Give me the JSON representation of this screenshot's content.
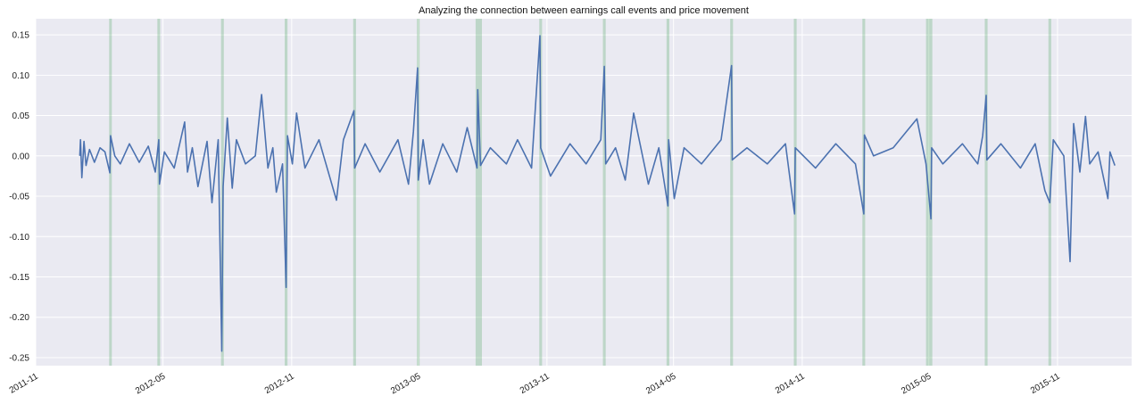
{
  "chart_data": {
    "type": "line",
    "title": "Analyzing the connection between earnings call events and price movement",
    "xlabel": "",
    "ylabel": "",
    "x_range": [
      "2011-11-01",
      "2016-02-15"
    ],
    "ylim": [
      -0.26,
      0.17
    ],
    "grid": true,
    "x_tick_labels": [
      "2011-11",
      "2012-05",
      "2012-11",
      "2013-05",
      "2013-11",
      "2014-05",
      "2014-11",
      "2015-05",
      "2015-11"
    ],
    "x_tick_dates": [
      "2011-11-01",
      "2012-05-01",
      "2012-11-01",
      "2013-05-01",
      "2013-11-01",
      "2014-05-01",
      "2014-11-01",
      "2015-05-01",
      "2015-11-01"
    ],
    "y_ticks": [
      -0.25,
      -0.2,
      -0.15,
      -0.1,
      -0.05,
      0.0,
      0.05,
      0.1,
      0.15
    ],
    "y_tick_labels": [
      "-0.25",
      "-0.20",
      "-0.15",
      "-0.10",
      "-0.05",
      "0.00",
      "0.05",
      "0.10",
      "0.15"
    ],
    "events": [
      {
        "start": "2012-02-14",
        "end": "2012-02-17"
      },
      {
        "start": "2012-04-23",
        "end": "2012-04-27"
      },
      {
        "start": "2012-07-23",
        "end": "2012-07-27"
      },
      {
        "start": "2012-10-22",
        "end": "2012-10-26"
      },
      {
        "start": "2013-01-28",
        "end": "2013-02-01"
      },
      {
        "start": "2013-04-29",
        "end": "2013-05-03"
      },
      {
        "start": "2013-07-22",
        "end": "2013-07-31"
      },
      {
        "start": "2013-10-21",
        "end": "2013-10-25"
      },
      {
        "start": "2014-01-20",
        "end": "2014-01-24"
      },
      {
        "start": "2014-04-21",
        "end": "2014-04-25"
      },
      {
        "start": "2014-07-21",
        "end": "2014-07-25"
      },
      {
        "start": "2014-10-20",
        "end": "2014-10-24"
      },
      {
        "start": "2015-01-26",
        "end": "2015-01-30"
      },
      {
        "start": "2015-04-27",
        "end": "2015-05-06"
      },
      {
        "start": "2015-07-20",
        "end": "2015-07-24"
      },
      {
        "start": "2015-10-19",
        "end": "2015-10-23"
      }
    ],
    "series": [
      {
        "color": "#4c72b0",
        "points": [
          [
            "2012-01-03",
            0.0
          ],
          [
            "2012-01-04",
            0.02
          ],
          [
            "2012-01-06",
            -0.027
          ],
          [
            "2012-01-09",
            0.018
          ],
          [
            "2012-01-12",
            -0.012
          ],
          [
            "2012-01-17",
            0.008
          ],
          [
            "2012-01-24",
            -0.008
          ],
          [
            "2012-02-01",
            0.01
          ],
          [
            "2012-02-08",
            0.005
          ],
          [
            "2012-02-15",
            -0.021
          ],
          [
            "2012-02-16",
            0.025
          ],
          [
            "2012-02-22",
            0.0
          ],
          [
            "2012-03-01",
            -0.01
          ],
          [
            "2012-03-14",
            0.015
          ],
          [
            "2012-03-28",
            -0.008
          ],
          [
            "2012-04-10",
            0.012
          ],
          [
            "2012-04-20",
            -0.02
          ],
          [
            "2012-04-25",
            0.02
          ],
          [
            "2012-04-26",
            -0.035
          ],
          [
            "2012-05-03",
            0.005
          ],
          [
            "2012-05-17",
            -0.015
          ],
          [
            "2012-06-01",
            0.042
          ],
          [
            "2012-06-05",
            -0.02
          ],
          [
            "2012-06-12",
            0.01
          ],
          [
            "2012-06-20",
            -0.038
          ],
          [
            "2012-07-03",
            0.018
          ],
          [
            "2012-07-10",
            -0.058
          ],
          [
            "2012-07-19",
            0.02
          ],
          [
            "2012-07-24",
            -0.242
          ],
          [
            "2012-07-26",
            -0.038
          ],
          [
            "2012-08-01",
            0.047
          ],
          [
            "2012-08-08",
            -0.04
          ],
          [
            "2012-08-14",
            0.02
          ],
          [
            "2012-08-27",
            -0.01
          ],
          [
            "2012-09-10",
            0.0
          ],
          [
            "2012-09-19",
            0.076
          ],
          [
            "2012-09-28",
            -0.015
          ],
          [
            "2012-10-05",
            0.01
          ],
          [
            "2012-10-10",
            -0.045
          ],
          [
            "2012-10-19",
            -0.01
          ],
          [
            "2012-10-24",
            -0.163
          ],
          [
            "2012-10-26",
            0.025
          ],
          [
            "2012-11-02",
            -0.01
          ],
          [
            "2012-11-08",
            0.053
          ],
          [
            "2012-11-20",
            -0.015
          ],
          [
            "2012-12-10",
            0.02
          ],
          [
            "2013-01-04",
            -0.055
          ],
          [
            "2013-01-14",
            0.02
          ],
          [
            "2013-01-29",
            0.056
          ],
          [
            "2013-01-30",
            -0.015
          ],
          [
            "2013-02-14",
            0.015
          ],
          [
            "2013-03-07",
            -0.02
          ],
          [
            "2013-04-02",
            0.02
          ],
          [
            "2013-04-17",
            -0.035
          ],
          [
            "2013-04-24",
            0.03
          ],
          [
            "2013-04-30",
            0.109
          ],
          [
            "2013-05-01",
            -0.03
          ],
          [
            "2013-05-08",
            0.02
          ],
          [
            "2013-05-17",
            -0.035
          ],
          [
            "2013-06-05",
            0.015
          ],
          [
            "2013-06-25",
            -0.02
          ],
          [
            "2013-07-10",
            0.035
          ],
          [
            "2013-07-24",
            -0.015
          ],
          [
            "2013-07-25",
            0.082
          ],
          [
            "2013-07-29",
            -0.012
          ],
          [
            "2013-08-12",
            0.01
          ],
          [
            "2013-09-04",
            -0.01
          ],
          [
            "2013-09-20",
            0.02
          ],
          [
            "2013-10-10",
            -0.015
          ],
          [
            "2013-10-22",
            0.149
          ],
          [
            "2013-10-23",
            0.01
          ],
          [
            "2013-11-06",
            -0.025
          ],
          [
            "2013-12-04",
            0.015
          ],
          [
            "2013-12-27",
            -0.01
          ],
          [
            "2014-01-17",
            0.02
          ],
          [
            "2014-01-22",
            0.111
          ],
          [
            "2014-01-24",
            -0.01
          ],
          [
            "2014-02-07",
            0.01
          ],
          [
            "2014-02-21",
            -0.03
          ],
          [
            "2014-03-05",
            0.053
          ],
          [
            "2014-03-26",
            -0.035
          ],
          [
            "2014-04-10",
            0.01
          ],
          [
            "2014-04-23",
            -0.062
          ],
          [
            "2014-04-24",
            0.02
          ],
          [
            "2014-05-02",
            -0.053
          ],
          [
            "2014-05-16",
            0.01
          ],
          [
            "2014-06-10",
            -0.01
          ],
          [
            "2014-07-08",
            0.02
          ],
          [
            "2014-07-23",
            0.112
          ],
          [
            "2014-07-24",
            -0.005
          ],
          [
            "2014-08-14",
            0.01
          ],
          [
            "2014-09-12",
            -0.01
          ],
          [
            "2014-10-08",
            0.015
          ],
          [
            "2014-10-21",
            -0.072
          ],
          [
            "2014-10-22",
            0.01
          ],
          [
            "2014-11-20",
            -0.015
          ],
          [
            "2014-12-19",
            0.015
          ],
          [
            "2015-01-16",
            -0.01
          ],
          [
            "2015-01-28",
            -0.072
          ],
          [
            "2015-01-29",
            0.026
          ],
          [
            "2015-02-11",
            0.0
          ],
          [
            "2015-03-11",
            0.01
          ],
          [
            "2015-04-14",
            0.046
          ],
          [
            "2015-04-27",
            -0.01
          ],
          [
            "2015-05-04",
            -0.078
          ],
          [
            "2015-05-05",
            0.01
          ],
          [
            "2015-05-21",
            -0.01
          ],
          [
            "2015-06-18",
            0.015
          ],
          [
            "2015-07-10",
            -0.01
          ],
          [
            "2015-07-17",
            0.025
          ],
          [
            "2015-07-22",
            0.075
          ],
          [
            "2015-07-23",
            -0.005
          ],
          [
            "2015-08-12",
            0.015
          ],
          [
            "2015-09-09",
            -0.015
          ],
          [
            "2015-09-30",
            0.015
          ],
          [
            "2015-10-14",
            -0.043
          ],
          [
            "2015-10-21",
            -0.058
          ],
          [
            "2015-10-26",
            0.02
          ],
          [
            "2015-11-10",
            0.0
          ],
          [
            "2015-11-19",
            -0.131
          ],
          [
            "2015-11-24",
            0.04
          ],
          [
            "2015-12-03",
            -0.02
          ],
          [
            "2015-12-11",
            0.049
          ],
          [
            "2015-12-17",
            -0.01
          ],
          [
            "2015-12-29",
            0.005
          ],
          [
            "2016-01-12",
            -0.053
          ],
          [
            "2016-01-15",
            0.005
          ],
          [
            "2016-01-22",
            -0.012
          ]
        ]
      }
    ]
  }
}
